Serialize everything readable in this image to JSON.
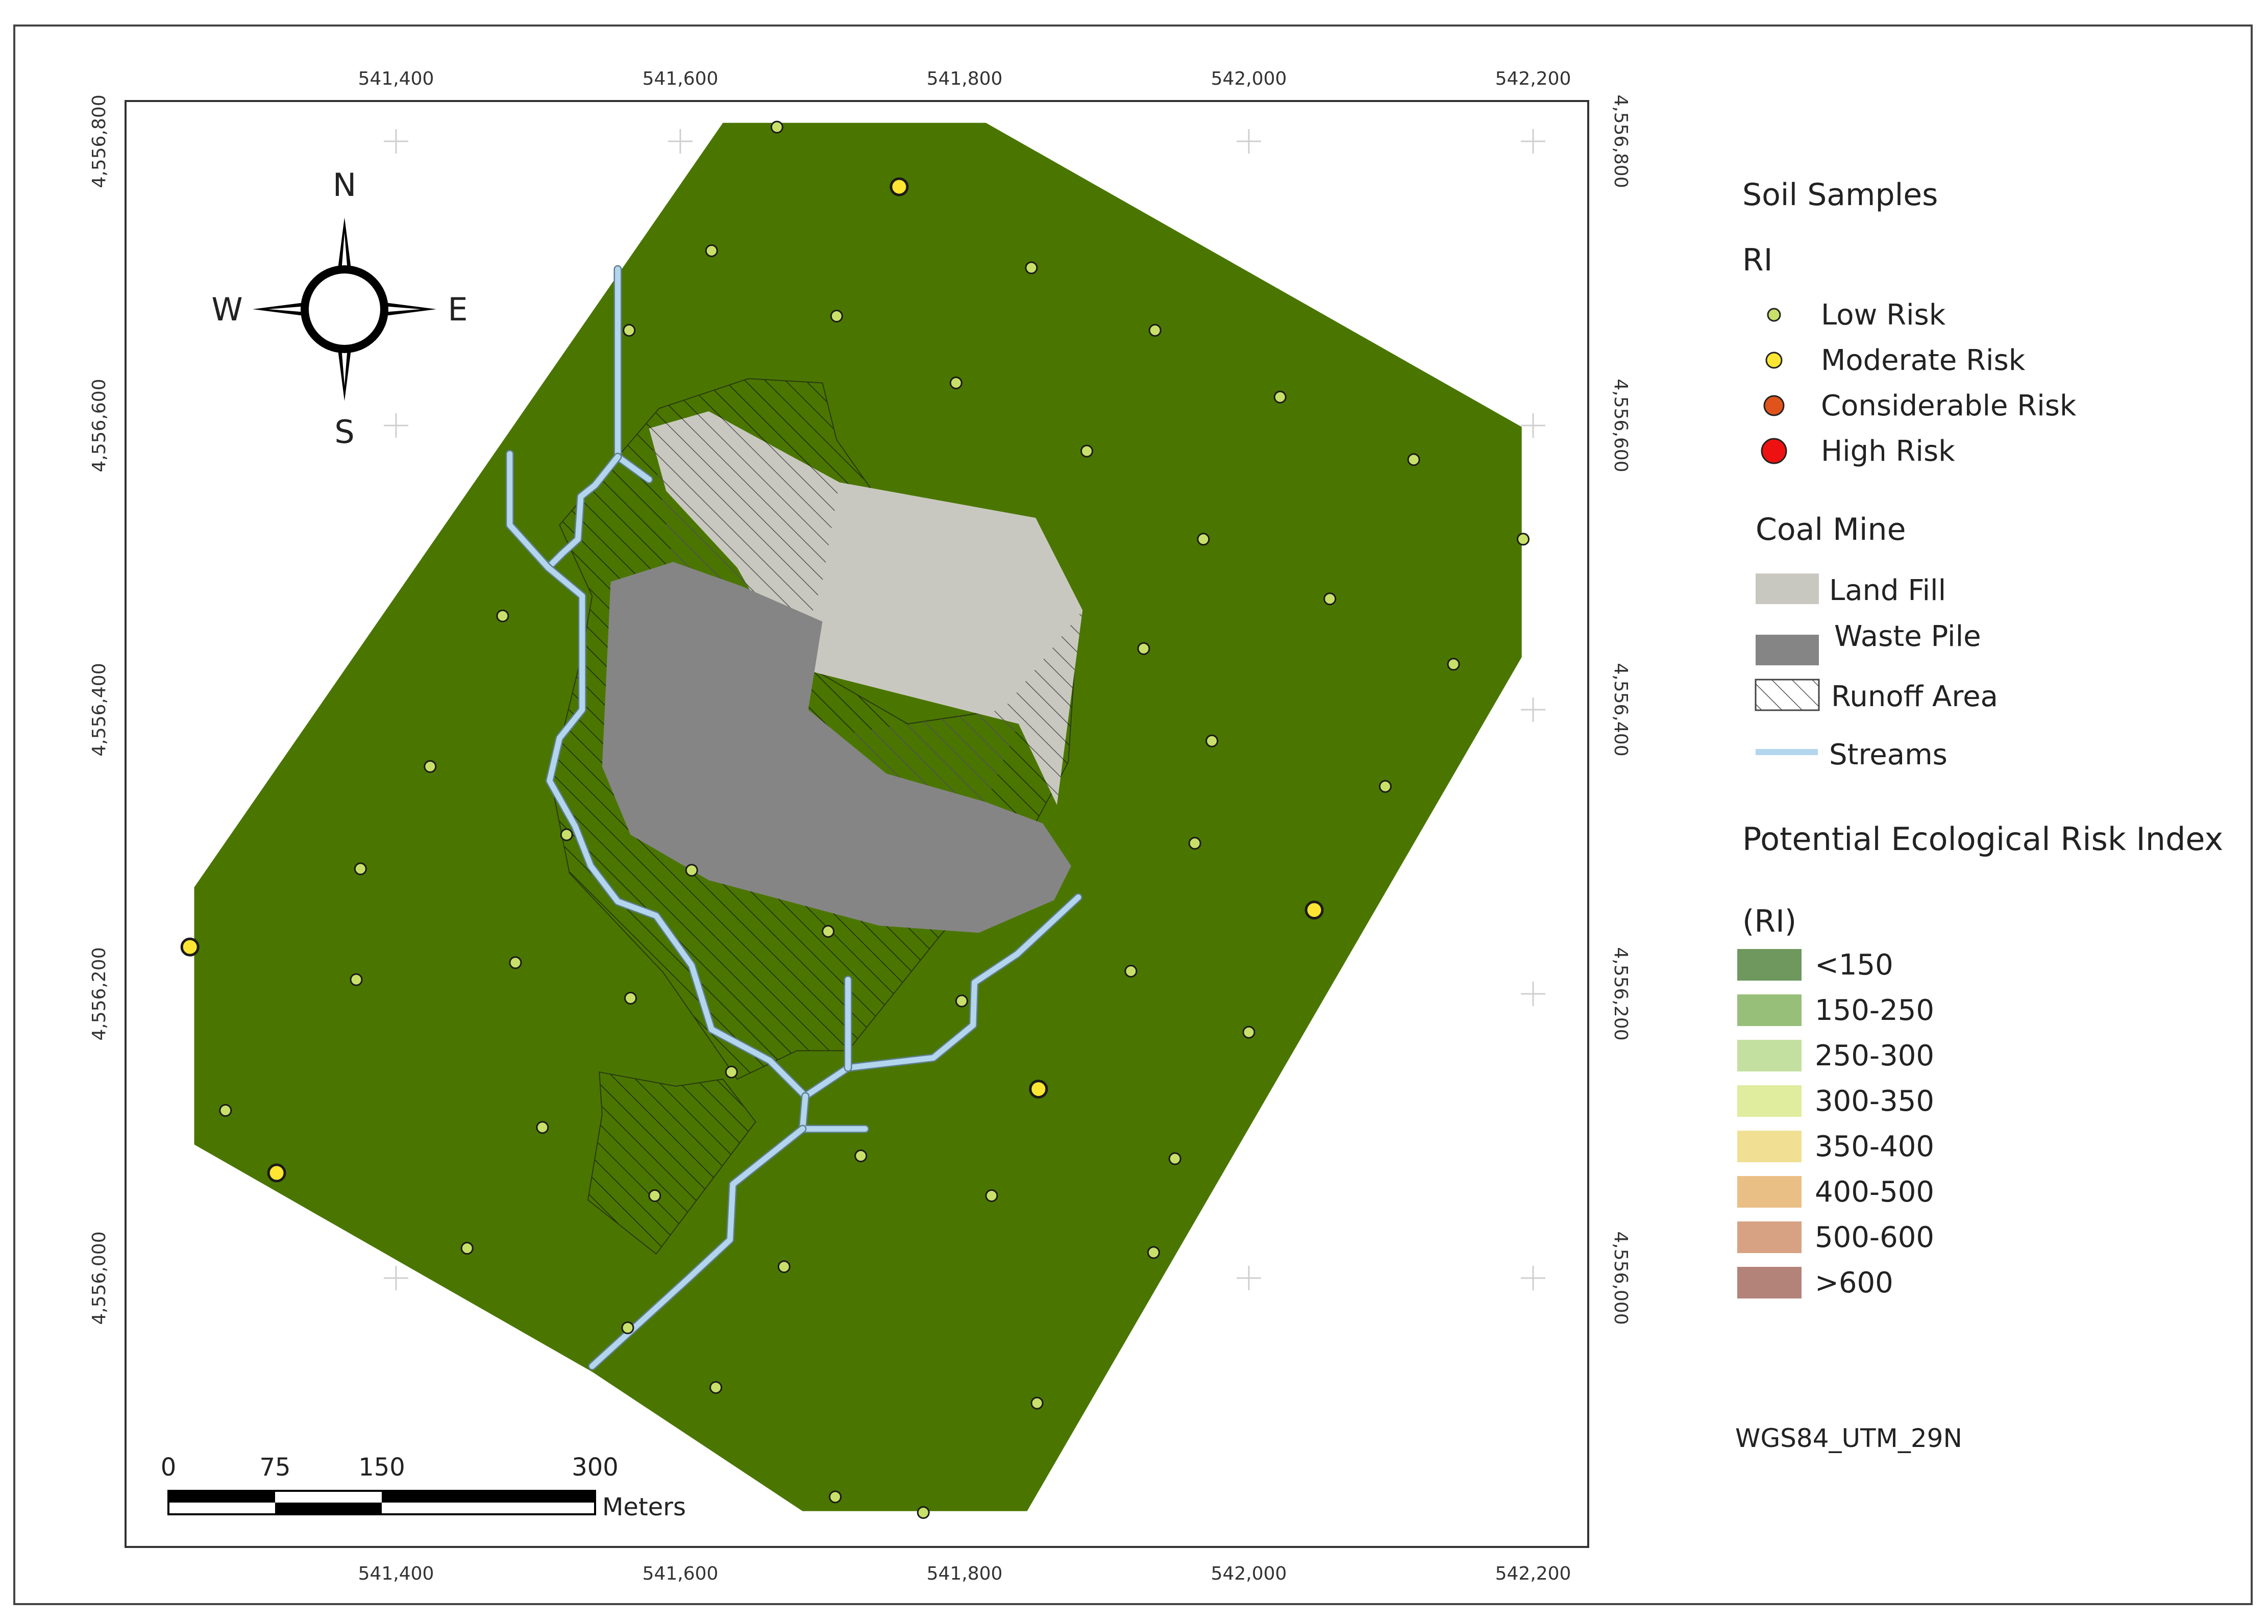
{
  "axes": {
    "x_ticks": [
      "541,400",
      "541,600",
      "541,800",
      "542,000",
      "542,200"
    ],
    "y_ticks": [
      "4,556,800",
      "4,556,600",
      "4,556,400",
      "4,556,200",
      "4,556,000"
    ]
  },
  "compass": {
    "n": "N",
    "s": "S",
    "e": "E",
    "w": "W"
  },
  "scale_bar": {
    "labels": [
      "0",
      "75",
      "150",
      "300"
    ],
    "unit": "Meters"
  },
  "legend": {
    "soil_samples_title": "Soil Samples",
    "ri_title": "RI",
    "risk_levels": [
      {
        "label": "Low Risk",
        "color": "#c8e06a"
      },
      {
        "label": "Moderate Risk",
        "color": "#ffe633"
      },
      {
        "label": "Considerable Risk",
        "color": "#e0531a"
      },
      {
        "label": "High Risk",
        "color": "#ee1111"
      }
    ],
    "coal_mine_title": "Coal Mine",
    "coal_mine_items": [
      {
        "label": "Land Fill",
        "color": "#c9c8c0"
      },
      {
        "label": "Waste Pile",
        "color": "#858585"
      },
      {
        "label": "Runoff Area",
        "color": "hatch"
      },
      {
        "label": "Streams",
        "color": "#b3d6ee"
      }
    ],
    "rei_title": "Potential Ecological Risk Index",
    "rei_subtitle": "(RI)",
    "rei_classes": [
      {
        "label": "<150",
        "color": "#6f985f"
      },
      {
        "label": "150-250",
        "color": "#98bf79"
      },
      {
        "label": "250-300",
        "color": "#c3e0a0"
      },
      {
        "label": "300-350",
        "color": "#e0ec9e"
      },
      {
        "label": "350-400",
        "color": "#f1e094"
      },
      {
        "label": "400-500",
        "color": "#eabf86"
      },
      {
        "label": "500-600",
        "color": "#d7a283"
      },
      {
        "label": ">600",
        "color": "#b3837a"
      }
    ],
    "projection": "WGS84_UTM_29N"
  },
  "colors": {
    "study_area": "#4a7600",
    "land_fill": "#c9c8c0",
    "waste_pile": "#858585",
    "stream": "#b3d6ee",
    "sample_low": "#c8e06a",
    "sample_moderate": "#ffe633"
  },
  "samples": {
    "low": [
      [
        541668,
        4556810
      ],
      [
        541622,
        4556723
      ],
      [
        541847,
        4556711
      ],
      [
        541564,
        4556667
      ],
      [
        541710,
        4556677
      ],
      [
        541934,
        4556667
      ],
      [
        541794,
        4556630
      ],
      [
        542022,
        4556620
      ],
      [
        541886,
        4556582
      ],
      [
        542116,
        4556576
      ],
      [
        541968,
        4556520
      ],
      [
        542193,
        4556520
      ],
      [
        541475,
        4556466
      ],
      [
        542057,
        4556478
      ],
      [
        541926,
        4556443
      ],
      [
        541974,
        4556378
      ],
      [
        542144,
        4556432
      ],
      [
        541424,
        4556360
      ],
      [
        542096,
        4556346
      ],
      [
        541520,
        4556312
      ],
      [
        541962,
        4556306
      ],
      [
        541375,
        4556288
      ],
      [
        541608,
        4556287
      ],
      [
        541704,
        4556244
      ],
      [
        541484,
        4556222
      ],
      [
        541917,
        4556216
      ],
      [
        541372,
        4556210
      ],
      [
        541565,
        4556197
      ],
      [
        541798,
        4556195
      ],
      [
        542000,
        4556173
      ],
      [
        541636,
        4556145
      ],
      [
        541280,
        4556118
      ],
      [
        541503,
        4556106
      ],
      [
        541727,
        4556086
      ],
      [
        541948,
        4556084
      ],
      [
        541582,
        4556058
      ],
      [
        541819,
        4556058
      ],
      [
        541450,
        4556021
      ],
      [
        541933,
        4556018
      ],
      [
        541673,
        4556008
      ],
      [
        541563,
        4555965
      ],
      [
        541625,
        4555923
      ],
      [
        541851,
        4555912
      ],
      [
        541709,
        4555846
      ],
      [
        541771,
        4555835
      ]
    ],
    "moderate": [
      [
        541754,
        4556768
      ],
      [
        542046,
        4556259
      ],
      [
        541255,
        4556233
      ],
      [
        541852,
        4556133
      ],
      [
        541316,
        4556074
      ]
    ]
  },
  "geo": {
    "study_area": [
      [
        541630,
        4556813
      ],
      [
        541815,
        4556813
      ],
      [
        542192,
        4556599
      ],
      [
        542192,
        4556437
      ],
      [
        541844,
        4555836
      ],
      [
        541686,
        4555836
      ],
      [
        541538,
        4555934
      ],
      [
        541258,
        4556094
      ],
      [
        541258,
        4556275
      ]
    ],
    "land_fill": [
      [
        541578,
        4556598
      ],
      [
        541620,
        4556610
      ],
      [
        541712,
        4556560
      ],
      [
        541850,
        4556535
      ],
      [
        541883,
        4556470
      ],
      [
        541865,
        4556333
      ],
      [
        541838,
        4556390
      ],
      [
        541680,
        4556430
      ],
      [
        541640,
        4556500
      ],
      [
        541590,
        4556554
      ]
    ],
    "waste_pile": [
      [
        541551,
        4556490
      ],
      [
        541595,
        4556504
      ],
      [
        541643,
        4556487
      ],
      [
        541700,
        4556462
      ],
      [
        541690,
        4556400
      ],
      [
        541745,
        4556355
      ],
      [
        541815,
        4556335
      ],
      [
        541855,
        4556320
      ],
      [
        541875,
        4556290
      ],
      [
        541863,
        4556266
      ],
      [
        541810,
        4556243
      ],
      [
        541740,
        4556248
      ],
      [
        541620,
        4556280
      ],
      [
        541565,
        4556312
      ],
      [
        541545,
        4556360
      ]
    ],
    "runoff_main": [
      [
        541585,
        4556612
      ],
      [
        541648,
        4556633
      ],
      [
        541700,
        4556630
      ],
      [
        541710,
        4556590
      ],
      [
        541738,
        4556550
      ],
      [
        541700,
        4556490
      ],
      [
        541682,
        4556435
      ],
      [
        541760,
        4556390
      ],
      [
        541827,
        4556400
      ],
      [
        541878,
        4556440
      ],
      [
        541873,
        4556363
      ],
      [
        541848,
        4556317
      ],
      [
        541782,
        4556240
      ],
      [
        541718,
        4556160
      ],
      [
        541682,
        4556160
      ],
      [
        541640,
        4556140
      ],
      [
        541588,
        4556215
      ],
      [
        541522,
        4556285
      ],
      [
        541509,
        4556350
      ],
      [
        541531,
        4556440
      ],
      [
        541538,
        4556480
      ],
      [
        541515,
        4556530
      ]
    ],
    "runoff_lower": [
      [
        541543,
        4556145
      ],
      [
        541597,
        4556135
      ],
      [
        541630,
        4556140
      ],
      [
        541653,
        4556110
      ],
      [
        541583,
        4556017
      ],
      [
        541535,
        4556055
      ],
      [
        541545,
        4556115
      ]
    ],
    "streams": [
      [
        [
          541556,
          4556710
        ],
        [
          541556,
          4556578
        ],
        [
          541578,
          4556562
        ]
      ],
      [
        [
          541556,
          4556578
        ],
        [
          541540,
          4556558
        ],
        [
          541530,
          4556550
        ],
        [
          541528,
          4556520
        ],
        [
          541517,
          4556510
        ],
        [
          541507,
          4556500
        ]
      ],
      [
        [
          541480,
          4556580
        ],
        [
          541480,
          4556530
        ],
        [
          541507,
          4556500
        ],
        [
          541531,
          4556480
        ],
        [
          541531,
          4556400
        ],
        [
          541515,
          4556380
        ],
        [
          541508,
          4556350
        ],
        [
          541526,
          4556318
        ],
        [
          541537,
          4556290
        ],
        [
          541556,
          4556265
        ],
        [
          541583,
          4556255
        ],
        [
          541608,
          4556220
        ],
        [
          541622,
          4556175
        ],
        [
          541663,
          4556153
        ],
        [
          541688,
          4556128
        ],
        [
          541718,
          4556148
        ],
        [
          541778,
          4556155
        ],
        [
          541806,
          4556178
        ],
        [
          541807,
          4556208
        ],
        [
          541837,
          4556228
        ],
        [
          541880,
          4556268
        ]
      ],
      [
        [
          541688,
          4556128
        ],
        [
          541686,
          4556105
        ],
        [
          541730,
          4556105
        ]
      ],
      [
        [
          541718,
          4556148
        ],
        [
          541718,
          4556210
        ]
      ],
      [
        [
          541686,
          4556105
        ],
        [
          541637,
          4556066
        ],
        [
          541635,
          4556027
        ],
        [
          541606,
          4556000
        ],
        [
          541538,
          4555938
        ]
      ]
    ]
  }
}
